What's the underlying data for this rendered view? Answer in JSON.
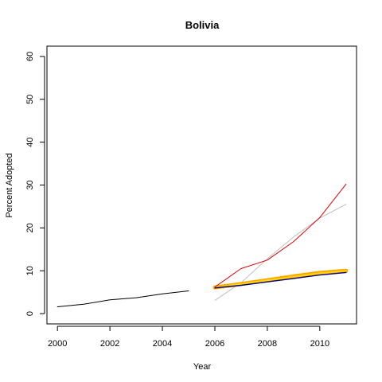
{
  "chart_data": {
    "type": "line",
    "title": "Bolivia",
    "xlabel": "Year",
    "ylabel": "Percent Adopted",
    "xlim": [
      1999.6,
      2011.4
    ],
    "ylim": [
      -2.4,
      62.4
    ],
    "x_ticks": [
      2000,
      2002,
      2004,
      2006,
      2008,
      2010
    ],
    "y_ticks": [
      0,
      10,
      20,
      30,
      40,
      50,
      60
    ],
    "grid": false,
    "legend": "none",
    "series": [
      {
        "color": "#000000",
        "width": 1,
        "points": [
          [
            2000,
            1.6
          ],
          [
            2001,
            2.2
          ],
          [
            2002,
            3.2
          ],
          [
            2003,
            3.7
          ],
          [
            2004,
            4.6
          ],
          [
            2005,
            5.3
          ]
        ]
      },
      {
        "color": "#c0c0c0",
        "width": 1,
        "points": [
          [
            2006,
            3.1
          ],
          [
            2007,
            7.2
          ],
          [
            2008,
            12.8
          ],
          [
            2009,
            17.9
          ],
          [
            2010,
            22.3
          ],
          [
            2011,
            25.5
          ]
        ]
      },
      {
        "color": "#ffa500",
        "width": 5,
        "points": [
          [
            2006,
            6.1
          ],
          [
            2007,
            6.9
          ],
          [
            2008,
            7.8
          ],
          [
            2009,
            8.7
          ],
          [
            2010,
            9.5
          ],
          [
            2011,
            10.0
          ]
        ]
      },
      {
        "color": "#ffd700",
        "width": 2,
        "points": [
          [
            2006,
            6.1
          ],
          [
            2007,
            6.9
          ],
          [
            2008,
            7.8
          ],
          [
            2009,
            8.6
          ],
          [
            2010,
            9.4
          ],
          [
            2011,
            10.0
          ]
        ]
      },
      {
        "color": "#00008b",
        "width": 1.4,
        "points": [
          [
            2006,
            6.0
          ],
          [
            2007,
            6.6
          ],
          [
            2008,
            7.4
          ],
          [
            2009,
            8.2
          ],
          [
            2010,
            9.0
          ],
          [
            2011,
            9.6
          ]
        ]
      },
      {
        "color": "#e00000",
        "width": 1,
        "points": [
          [
            2006,
            6.2
          ],
          [
            2007,
            10.5
          ],
          [
            2008,
            12.5
          ],
          [
            2009,
            16.8
          ],
          [
            2010,
            22.4
          ],
          [
            2011,
            30.2
          ]
        ]
      }
    ]
  }
}
